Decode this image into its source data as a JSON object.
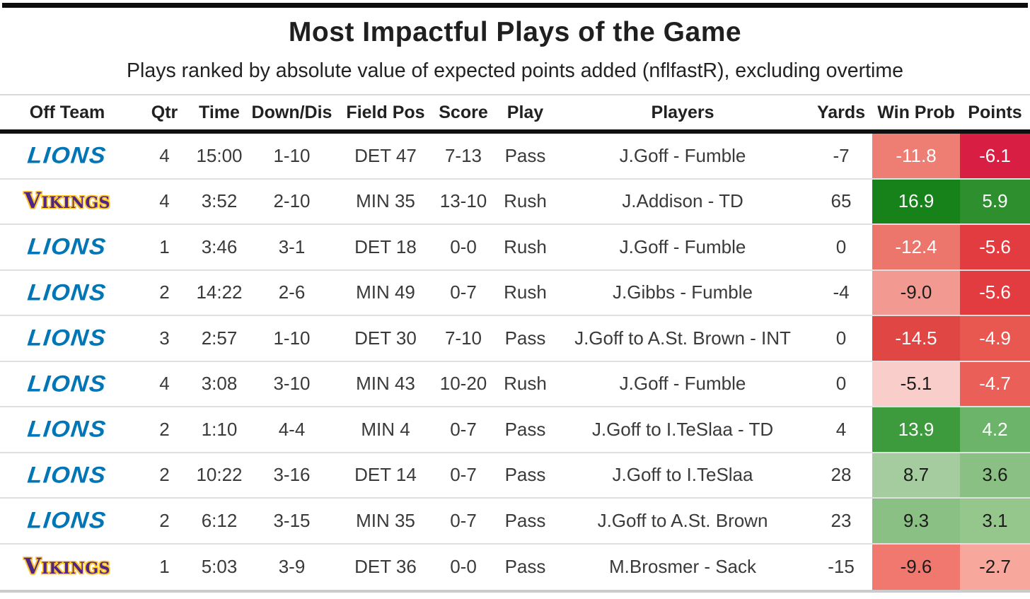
{
  "title": "Most Impactful Plays of the Game",
  "subtitle": "Plays ranked by absolute value of expected points added (nflfastR), excluding overtime",
  "columns": [
    "Off Team",
    "Qtr",
    "Time",
    "Down/Dis",
    "Field Pos",
    "Score",
    "Play",
    "Players",
    "Yards",
    "Win Prob",
    "Points"
  ],
  "teams": {
    "lions": {
      "wordmark": "LIONS",
      "color": "#0076b6"
    },
    "vikings": {
      "wordmark": "Vikings",
      "color": "#4f2683",
      "outline": "#ffc62f"
    }
  },
  "rows": [
    {
      "team": "lions",
      "qtr": "4",
      "time": "15:00",
      "down_dis": "1-10",
      "field_pos": "DET 47",
      "score": "7-13",
      "play": "Pass",
      "players": "J.Goff - Fumble",
      "yards": "-7",
      "win_prob": {
        "value": "-11.8",
        "bg": "#ee7d73",
        "fg": "#ffffff"
      },
      "points": {
        "value": "-6.1",
        "bg": "#d81f43",
        "fg": "#ffffff"
      }
    },
    {
      "team": "vikings",
      "qtr": "4",
      "time": "3:52",
      "down_dis": "2-10",
      "field_pos": "MIN 35",
      "score": "13-10",
      "play": "Rush",
      "players": "J.Addison - TD",
      "yards": "65",
      "win_prob": {
        "value": "16.9",
        "bg": "#17811a",
        "fg": "#ffffff"
      },
      "points": {
        "value": "5.9",
        "bg": "#2e8f2e",
        "fg": "#ffffff"
      }
    },
    {
      "team": "lions",
      "qtr": "1",
      "time": "3:46",
      "down_dis": "3-1",
      "field_pos": "DET 18",
      "score": "0-0",
      "play": "Rush",
      "players": "J.Goff - Fumble",
      "yards": "0",
      "win_prob": {
        "value": "-12.4",
        "bg": "#ec766c",
        "fg": "#ffffff"
      },
      "points": {
        "value": "-5.6",
        "bg": "#e23c40",
        "fg": "#ffffff"
      }
    },
    {
      "team": "lions",
      "qtr": "2",
      "time": "14:22",
      "down_dis": "2-6",
      "field_pos": "MIN 49",
      "score": "0-7",
      "play": "Rush",
      "players": "J.Gibbs - Fumble",
      "yards": "-4",
      "win_prob": {
        "value": "-9.0",
        "bg": "#f29a91",
        "fg": "#1c1c1c"
      },
      "points": {
        "value": "-5.6",
        "bg": "#e23c40",
        "fg": "#ffffff"
      }
    },
    {
      "team": "lions",
      "qtr": "3",
      "time": "2:57",
      "down_dis": "1-10",
      "field_pos": "DET 30",
      "score": "7-10",
      "play": "Pass",
      "players": "J.Goff to A.St. Brown - INT",
      "yards": "0",
      "win_prob": {
        "value": "-14.5",
        "bg": "#e04643",
        "fg": "#ffffff"
      },
      "points": {
        "value": "-4.9",
        "bg": "#e85750",
        "fg": "#ffffff"
      }
    },
    {
      "team": "lions",
      "qtr": "4",
      "time": "3:08",
      "down_dis": "3-10",
      "field_pos": "MIN 43",
      "score": "10-20",
      "play": "Rush",
      "players": "J.Goff - Fumble",
      "yards": "0",
      "win_prob": {
        "value": "-5.1",
        "bg": "#f9cdc9",
        "fg": "#1c1c1c"
      },
      "points": {
        "value": "-4.7",
        "bg": "#ea5f57",
        "fg": "#ffffff"
      }
    },
    {
      "team": "lions",
      "qtr": "2",
      "time": "1:10",
      "down_dis": "4-4",
      "field_pos": "MIN 4",
      "score": "0-7",
      "play": "Pass",
      "players": "J.Goff to I.TeSlaa - TD",
      "yards": "4",
      "win_prob": {
        "value": "13.9",
        "bg": "#3d9b3d",
        "fg": "#ffffff"
      },
      "points": {
        "value": "4.2",
        "bg": "#6db46b",
        "fg": "#ffffff"
      }
    },
    {
      "team": "lions",
      "qtr": "2",
      "time": "10:22",
      "down_dis": "3-16",
      "field_pos": "DET 14",
      "score": "0-7",
      "play": "Pass",
      "players": "J.Goff to I.TeSlaa",
      "yards": "28",
      "win_prob": {
        "value": "8.7",
        "bg": "#a4cc9f",
        "fg": "#1c1c1c"
      },
      "points": {
        "value": "3.6",
        "bg": "#8ac083",
        "fg": "#1c1c1c"
      }
    },
    {
      "team": "lions",
      "qtr": "2",
      "time": "6:12",
      "down_dis": "3-15",
      "field_pos": "MIN 35",
      "score": "0-7",
      "play": "Pass",
      "players": "J.Goff to A.St. Brown",
      "yards": "23",
      "win_prob": {
        "value": "9.3",
        "bg": "#8bc084",
        "fg": "#1c1c1c"
      },
      "points": {
        "value": "3.1",
        "bg": "#95c78d",
        "fg": "#1c1c1c"
      }
    },
    {
      "team": "vikings",
      "qtr": "1",
      "time": "5:03",
      "down_dis": "3-9",
      "field_pos": "DET 36",
      "score": "0-0",
      "play": "Pass",
      "players": "M.Brosmer - Sack",
      "yards": "-15",
      "win_prob": {
        "value": "-9.6",
        "bg": "#f0786e",
        "fg": "#1c1c1c"
      },
      "points": {
        "value": "-2.7",
        "bg": "#f8a79d",
        "fg": "#1c1c1c"
      }
    }
  ],
  "chart_data": {
    "type": "table",
    "title": "Most Impactful Plays of the Game",
    "subtitle": "Plays ranked by absolute value of expected points added (nflfastR), excluding overtime",
    "columns": [
      "Off Team",
      "Qtr",
      "Time",
      "Down/Dis",
      "Field Pos",
      "Score",
      "Play",
      "Players",
      "Yards",
      "Win Prob",
      "Points"
    ],
    "rows": [
      [
        "Lions",
        "4",
        "15:00",
        "1-10",
        "DET 47",
        "7-13",
        "Pass",
        "J.Goff - Fumble",
        "-7",
        "-11.8",
        "-6.1"
      ],
      [
        "Vikings",
        "4",
        "3:52",
        "2-10",
        "MIN 35",
        "13-10",
        "Rush",
        "J.Addison - TD",
        "65",
        "16.9",
        "5.9"
      ],
      [
        "Lions",
        "1",
        "3:46",
        "3-1",
        "DET 18",
        "0-0",
        "Rush",
        "J.Goff - Fumble",
        "0",
        "-12.4",
        "-5.6"
      ],
      [
        "Lions",
        "2",
        "14:22",
        "2-6",
        "MIN 49",
        "0-7",
        "Rush",
        "J.Gibbs - Fumble",
        "-4",
        "-9.0",
        "-5.6"
      ],
      [
        "Lions",
        "3",
        "2:57",
        "1-10",
        "DET 30",
        "7-10",
        "Pass",
        "J.Goff to A.St. Brown - INT",
        "0",
        "-14.5",
        "-4.9"
      ],
      [
        "Lions",
        "4",
        "3:08",
        "3-10",
        "MIN 43",
        "10-20",
        "Rush",
        "J.Goff - Fumble",
        "0",
        "-5.1",
        "-4.7"
      ],
      [
        "Lions",
        "2",
        "1:10",
        "4-4",
        "MIN 4",
        "0-7",
        "Pass",
        "J.Goff to I.TeSlaa - TD",
        "4",
        "13.9",
        "4.2"
      ],
      [
        "Lions",
        "2",
        "10:22",
        "3-16",
        "DET 14",
        "0-7",
        "Pass",
        "J.Goff to I.TeSlaa",
        "28",
        "8.7",
        "3.6"
      ],
      [
        "Lions",
        "2",
        "6:12",
        "3-15",
        "MIN 35",
        "0-7",
        "Pass",
        "J.Goff to A.St. Brown",
        "23",
        "9.3",
        "3.1"
      ],
      [
        "Vikings",
        "1",
        "5:03",
        "3-9",
        "DET 36",
        "0-0",
        "Pass",
        "M.Brosmer - Sack",
        "-15",
        "-9.6",
        "-2.7"
      ]
    ],
    "color_coding": "Win Prob and Points cells shaded red for negative values and green for positive values, intensity scaled to magnitude"
  }
}
